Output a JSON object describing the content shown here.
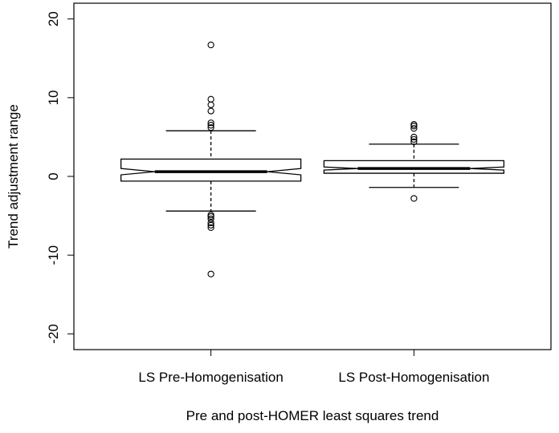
{
  "chart_data": {
    "type": "box",
    "title": "",
    "xlabel": "Pre and post-HOMER least squares trend",
    "ylabel": "Trend adjustment range",
    "ylim": [
      -22,
      22
    ],
    "yticks": [
      -20,
      -10,
      0,
      10,
      20
    ],
    "notched": true,
    "grid": false,
    "categories": [
      "LS Pre-Homogenisation",
      "LS Post-Homogenisation"
    ],
    "boxes": [
      {
        "name": "LS Pre-Homogenisation",
        "whisker_low": -4.4,
        "q1": -0.6,
        "median": 0.6,
        "q3": 2.2,
        "whisker_high": 5.8,
        "notch_low": 0.2,
        "notch_high": 1.0,
        "outliers": [
          16.7,
          9.8,
          9.1,
          8.3,
          6.8,
          6.5,
          6.2,
          -4.9,
          -5.1,
          -5.4,
          -5.9,
          -6.2,
          -6.5,
          -12.4
        ]
      },
      {
        "name": "LS Post-Homogenisation",
        "whisker_low": -1.4,
        "q1": 0.4,
        "median": 1.0,
        "q3": 2.0,
        "whisker_high": 4.1,
        "notch_low": 0.8,
        "notch_high": 1.2,
        "outliers": [
          6.6,
          6.4,
          6.1,
          5.0,
          4.7,
          4.4,
          -2.8
        ]
      }
    ]
  }
}
